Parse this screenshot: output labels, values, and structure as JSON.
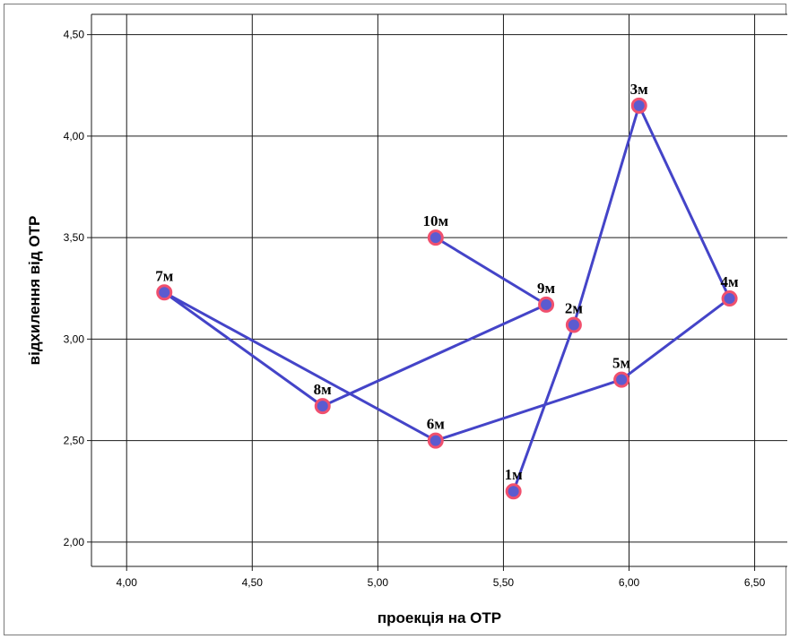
{
  "chart_data": {
    "type": "scatter",
    "title": "",
    "xlabel": "проекція на ОТР",
    "ylabel": "відхилення від ОТР",
    "xlim": [
      3.86,
      6.63
    ],
    "ylim": [
      1.88,
      4.6
    ],
    "x_ticks": [
      "4,00",
      "4,50",
      "5,00",
      "5,50",
      "6,00",
      "6,50"
    ],
    "x_tick_values": [
      4.0,
      4.5,
      5.0,
      5.5,
      6.0,
      6.5
    ],
    "y_ticks": [
      "2,00",
      "2,50",
      "3,00",
      "3,50",
      "4,00",
      "4,50"
    ],
    "y_tick_values": [
      2.0,
      2.5,
      3.0,
      3.5,
      4.0,
      4.5
    ],
    "grid": true,
    "legend": "none",
    "colors": {
      "line": "#4444c8",
      "marker_fill": "#5b5bd0",
      "marker_edge": "#f0506e"
    },
    "points": [
      {
        "label": "1м",
        "x": 5.54,
        "y": 2.25
      },
      {
        "label": "2м",
        "x": 5.78,
        "y": 3.07
      },
      {
        "label": "3м",
        "x": 6.04,
        "y": 4.15
      },
      {
        "label": "4м",
        "x": 6.4,
        "y": 3.2
      },
      {
        "label": "5м",
        "x": 5.97,
        "y": 2.8
      },
      {
        "label": "6м",
        "x": 5.23,
        "y": 2.5
      },
      {
        "label": "7м",
        "x": 4.15,
        "y": 3.23
      },
      {
        "label": "8м",
        "x": 4.78,
        "y": 2.67
      },
      {
        "label": "9м",
        "x": 5.67,
        "y": 3.17
      },
      {
        "label": "10м",
        "x": 5.23,
        "y": 3.5
      }
    ]
  }
}
